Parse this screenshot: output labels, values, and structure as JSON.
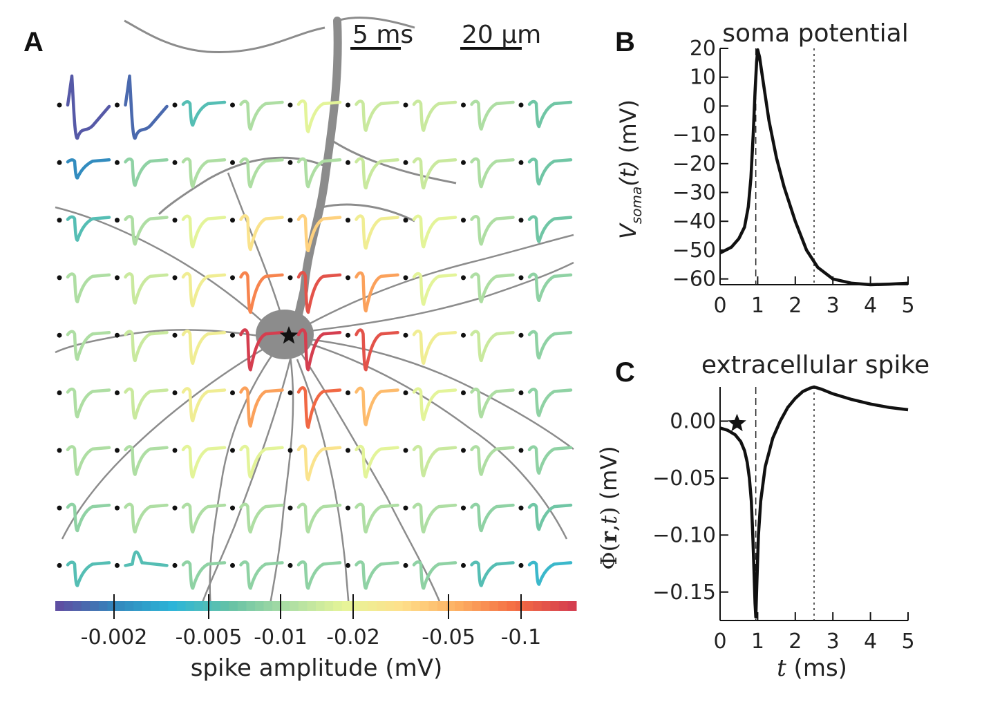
{
  "panels": {
    "A": {
      "letter": "A",
      "time_scalebar_label": "5 ms",
      "space_scalebar_label": "20 μm",
      "soma_marker": "star",
      "grid": {
        "rows": 9,
        "cols": 9
      },
      "colorbar": {
        "label": "spike amplitude (mV)",
        "tick_labels": [
          "-0.002",
          "-0.005",
          "-0.01",
          "-0.02",
          "-0.05",
          "-0.1"
        ],
        "colormap": "spectral",
        "color_low": "#5e4fa2",
        "color_high": "#d53e4f"
      }
    },
    "B": {
      "letter": "B",
      "title": "soma potential"
    },
    "C": {
      "letter": "C",
      "title": "extracellular spike",
      "marker": "star"
    }
  },
  "chart_data": [
    {
      "type": "heatmap",
      "description_source": "panel A: 9x9 grid of extracellular spike waveforms colored by spike amplitude",
      "amplitude_ranks": [
        [
          0.02,
          0.05,
          0.3,
          0.45,
          0.55,
          0.5,
          0.5,
          0.45,
          0.35
        ],
        [
          0.12,
          0.4,
          0.45,
          0.45,
          0.45,
          0.5,
          0.5,
          0.45,
          0.35
        ],
        [
          0.3,
          0.45,
          0.55,
          0.65,
          0.7,
          0.6,
          0.55,
          0.45,
          0.35
        ],
        [
          0.45,
          0.5,
          0.6,
          0.85,
          0.95,
          0.8,
          0.55,
          0.45,
          0.4
        ],
        [
          0.45,
          0.5,
          0.6,
          1.0,
          1.0,
          0.95,
          0.6,
          0.5,
          0.4
        ],
        [
          0.45,
          0.5,
          0.6,
          0.8,
          0.9,
          0.75,
          0.55,
          0.45,
          0.4
        ],
        [
          0.45,
          0.45,
          0.55,
          0.55,
          0.65,
          0.55,
          0.5,
          0.45,
          0.4
        ],
        [
          0.4,
          0.45,
          0.45,
          0.45,
          0.45,
          0.45,
          0.45,
          0.4,
          0.35
        ],
        [
          0.3,
          0.3,
          0.4,
          0.4,
          0.4,
          0.4,
          0.4,
          0.3,
          0.25
        ]
      ],
      "colorbar_ticks": [
        "-0.002",
        "-0.005",
        "-0.01",
        "-0.02",
        "-0.05",
        "-0.1"
      ],
      "xlabel": "spike amplitude (mV)"
    },
    {
      "type": "line",
      "title": "soma potential",
      "xlabel": "t (ms)",
      "ylabel": "V_soma(t) (mV)",
      "xlim": [
        0,
        5
      ],
      "ylim": [
        -62,
        20
      ],
      "xticks": [
        0,
        1,
        2,
        3,
        4,
        5
      ],
      "yticks": [
        20,
        10,
        0,
        -10,
        -20,
        -30,
        -40,
        -50,
        -60
      ],
      "vlines": [
        0.95,
        2.5
      ],
      "series": [
        {
          "x": [
            0,
            0.3,
            0.5,
            0.65,
            0.75,
            0.82,
            0.88,
            0.93,
            0.97,
            1.0,
            1.05,
            1.15,
            1.3,
            1.5,
            1.7,
            2.0,
            2.3,
            2.6,
            3.0,
            3.5,
            4.0,
            4.5,
            5.0
          ],
          "y": [
            -51,
            -49,
            -46,
            -42,
            -35,
            -25,
            -10,
            5,
            15,
            19.5,
            17,
            8,
            -5,
            -18,
            -28,
            -40,
            -50,
            -56,
            -60,
            -61.5,
            -62,
            -61.8,
            -61.5
          ]
        }
      ]
    },
    {
      "type": "line",
      "title": "extracellular spike",
      "xlabel": "t (ms)",
      "ylabel": "Φ(r,t) (mV)",
      "xlim": [
        0,
        5
      ],
      "ylim": [
        -0.175,
        0.03
      ],
      "xticks": [
        0,
        1,
        2,
        3,
        4,
        5
      ],
      "yticks": [
        0.0,
        -0.05,
        -0.1,
        -0.15
      ],
      "vlines": [
        0.95,
        2.5
      ],
      "series": [
        {
          "x": [
            0,
            0.2,
            0.4,
            0.55,
            0.65,
            0.72,
            0.78,
            0.83,
            0.87,
            0.9,
            0.93,
            0.95,
            0.98,
            1.02,
            1.08,
            1.2,
            1.4,
            1.6,
            1.8,
            2.0,
            2.2,
            2.4,
            2.5,
            2.7,
            3.0,
            3.5,
            4.0,
            4.5,
            5.0
          ],
          "y": [
            -0.006,
            -0.008,
            -0.012,
            -0.018,
            -0.026,
            -0.036,
            -0.05,
            -0.07,
            -0.1,
            -0.13,
            -0.16,
            -0.172,
            -0.14,
            -0.1,
            -0.07,
            -0.04,
            -0.015,
            0.0,
            0.012,
            0.02,
            0.026,
            0.029,
            0.03,
            0.028,
            0.024,
            0.019,
            0.015,
            0.012,
            0.01
          ]
        }
      ]
    }
  ]
}
